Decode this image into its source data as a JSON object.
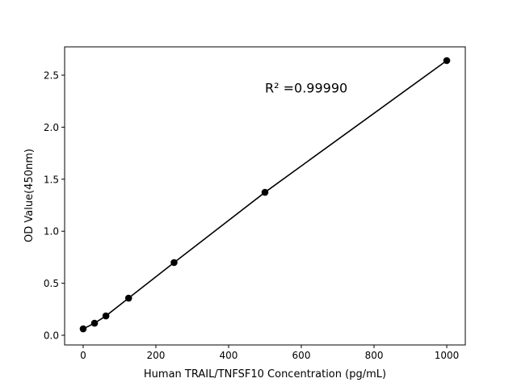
{
  "chart_data": {
    "type": "line",
    "title": "",
    "xlabel": "Human TRAIL/TNFSF10 Concentration (pg/mL)",
    "ylabel": "OD Value(450nm)",
    "xlim": [
      -51,
      1051
    ],
    "ylim": [
      -0.093,
      2.772
    ],
    "xticks": [
      0,
      200,
      400,
      600,
      800,
      1000
    ],
    "yticks": [
      0.0,
      0.5,
      1.0,
      1.5,
      2.0,
      2.5
    ],
    "xtick_labels": [
      "0",
      "200",
      "400",
      "600",
      "800",
      "1000"
    ],
    "ytick_labels": [
      "0.0",
      "0.5",
      "1.0",
      "1.5",
      "2.0",
      "2.5"
    ],
    "grid": false,
    "series": [
      {
        "x": [
          0,
          31.25,
          62.5,
          125,
          250,
          500,
          1000
        ],
        "y": [
          0.062,
          0.116,
          0.186,
          0.357,
          0.699,
          1.374,
          2.64
        ],
        "color": "#000000",
        "marker": "circle"
      }
    ],
    "annotations": [
      {
        "text": "R² =0.99990",
        "x": 500,
        "y": 2.38
      }
    ]
  }
}
